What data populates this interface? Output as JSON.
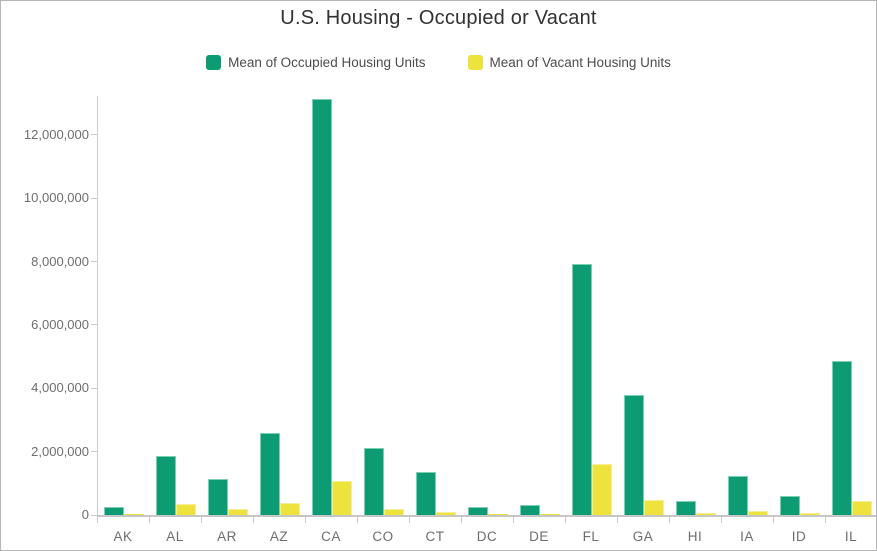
{
  "header": {
    "title": "U.S. Housing - Occupied or Vacant"
  },
  "legend": {
    "items": [
      {
        "label": "Mean of Occupied Housing Units",
        "color": "#0c9b72"
      },
      {
        "label": "Mean of Vacant Housing Units",
        "color": "#eee23c"
      }
    ]
  },
  "colors": {
    "occupied_bar": "#0c9b72",
    "occupied_bar_edge": "#7fceb2",
    "vacant_bar": "#eee23c",
    "vacant_bar_edge": "#f5ee9a",
    "axis_line": "#cccccc",
    "baseline": "#c6c6c6",
    "tick_text": "#6e6e6e",
    "title_text": "#323232",
    "page_border": "#b5b5b5"
  },
  "chart_data": {
    "type": "bar",
    "title": "U.S. Housing - Occupied or Vacant",
    "xlabel": "",
    "ylabel": "",
    "grid": false,
    "legend_position": "top",
    "categories": [
      "AK",
      "AL",
      "AR",
      "AZ",
      "CA",
      "CO",
      "CT",
      "DC",
      "DE",
      "FL",
      "GA",
      "HI",
      "IA",
      "ID",
      "IL"
    ],
    "series": [
      {
        "name": "Mean of Occupied Housing Units",
        "color": "#0c9b72",
        "edge_color": "#7fceb2",
        "values": [
          240000,
          1870000,
          1130000,
          2600000,
          13150000,
          2120000,
          1360000,
          240000,
          330000,
          7930000,
          3800000,
          435000,
          1235000,
          615000,
          4870000
        ]
      },
      {
        "name": "Mean of Vacant Housing Units",
        "color": "#eee23c",
        "edge_color": "#f5ee9a",
        "values": [
          45000,
          360000,
          175000,
          370000,
          1075000,
          200000,
          105000,
          25000,
          45000,
          1600000,
          465000,
          70000,
          115000,
          75000,
          450000
        ]
      }
    ],
    "ylim": [
      0,
      13230000
    ],
    "yticks": [
      0,
      2000000,
      4000000,
      6000000,
      8000000,
      10000000,
      12000000
    ],
    "ytick_labels": [
      "0",
      "2,000,000",
      "4,000,000",
      "6,000,000",
      "8,000,000",
      "10,000,000",
      "12,000,000"
    ]
  }
}
